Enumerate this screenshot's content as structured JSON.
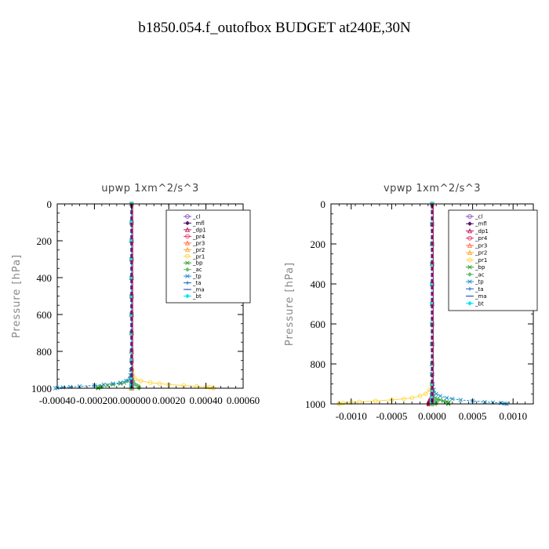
{
  "title": "b1850.054.f_outofbox  BUDGET at240E,30N",
  "legend_labels": [
    "_cl",
    "_mfl",
    "_dp1",
    "_pr4",
    "_pr3",
    "_pr2",
    "_pr1",
    "_bp",
    "_ac",
    "_tp",
    "_ta",
    "_ma",
    "_bt"
  ],
  "legend_colors": [
    "#8a4fbf",
    "#5a0f6e",
    "#c2185b",
    "#e8336d",
    "#ff7043",
    "#ffa726",
    "#ffd740",
    "#2e9e2e",
    "#66bb6a",
    "#1e90c8",
    "#1565c0",
    "#0d47a1",
    "#00e5ee"
  ],
  "chart_data": [
    {
      "type": "line",
      "title": "upwp   1xm^2/s^3",
      "xlabel": "",
      "ylabel": "Pressure [hPa]",
      "xlim": [
        -0.0004,
        0.0006
      ],
      "ylim": [
        1000,
        0
      ],
      "xticks": [
        -0.0004,
        -0.0002,
        0.0,
        0.0002,
        0.0004,
        0.0006
      ],
      "xtick_labels": [
        "-0.00040",
        "-0.00020",
        "0.000000",
        "0.00020",
        "0.00040",
        "0.00060"
      ],
      "yticks": [
        0,
        200,
        400,
        600,
        800,
        1000
      ],
      "legend_position": "top-right",
      "y": [
        0,
        100,
        200,
        300,
        400,
        500,
        600,
        700,
        800,
        850,
        900,
        930,
        950,
        960,
        970,
        975,
        980,
        985,
        990,
        993,
        995,
        998,
        1000
      ],
      "series": [
        {
          "name": "_cl",
          "values": [
            0,
            0,
            0,
            0,
            0,
            0,
            0,
            0,
            0,
            0,
            0,
            0,
            0,
            0,
            0,
            0,
            0,
            0,
            0,
            0,
            0,
            0,
            0
          ]
        },
        {
          "name": "_mfl",
          "values": [
            0,
            0,
            0,
            0,
            0,
            0,
            0,
            0,
            0,
            0,
            0,
            0,
            0,
            0,
            0,
            0,
            0,
            0,
            0,
            0,
            0,
            0,
            0
          ]
        },
        {
          "name": "_dp1",
          "values": [
            0,
            0,
            0,
            0,
            0,
            0,
            0,
            0,
            0,
            0,
            0,
            0,
            0,
            0,
            0,
            0,
            0,
            0,
            0,
            0,
            0,
            0,
            0
          ]
        },
        {
          "name": "_pr4",
          "values": [
            0,
            0,
            0,
            0,
            0,
            0,
            0,
            0,
            0,
            0,
            0,
            0,
            0,
            0,
            0,
            0,
            0,
            0,
            0,
            0,
            0,
            0,
            0
          ]
        },
        {
          "name": "_pr3",
          "values": [
            0,
            0,
            0,
            0,
            0,
            0,
            0,
            0,
            0,
            0,
            0,
            0,
            0,
            0,
            0,
            0,
            0,
            0,
            0,
            0,
            0,
            0,
            0
          ]
        },
        {
          "name": "_pr2",
          "values": [
            0,
            0,
            0,
            0,
            0,
            0,
            0,
            0,
            0,
            0,
            0,
            0,
            0,
            0,
            0,
            0,
            0,
            0,
            0,
            0,
            0,
            0,
            0
          ]
        },
        {
          "name": "_pr1",
          "values": [
            0,
            0,
            0,
            0,
            0,
            0,
            0,
            0,
            0,
            0,
            3e-06,
            8e-06,
            2e-05,
            5e-05,
            0.0001,
            0.00015,
            0.0002,
            0.00028,
            0.00035,
            0.0004,
            0.00042,
            0.00044,
            0.00044
          ]
        },
        {
          "name": "_bp",
          "values": [
            0,
            0,
            0,
            0,
            0,
            0,
            0,
            0,
            0,
            0,
            -2e-06,
            -5e-06,
            -1e-05,
            -2e-05,
            -4e-05,
            -6e-05,
            -0.0001,
            -0.00013,
            -0.00016,
            -0.00017,
            -0.00018,
            -0.00018,
            -0.00018
          ]
        },
        {
          "name": "_ac",
          "values": [
            0,
            0,
            0,
            0,
            0,
            0,
            0,
            0,
            0,
            0,
            0,
            2e-06,
            4e-06,
            8e-06,
            1e-05,
            1.5e-05,
            2e-05,
            3e-05,
            4e-05,
            4e-05,
            4e-05,
            4e-05,
            4e-05
          ]
        },
        {
          "name": "_tp",
          "values": [
            0,
            0,
            0,
            0,
            0,
            0,
            0,
            0,
            0,
            0,
            -2e-06,
            -6e-06,
            -1e-05,
            -3e-05,
            -6e-05,
            -0.0001,
            -0.00015,
            -0.0002,
            -0.00028,
            -0.00033,
            -0.00037,
            -0.0004,
            -0.00041
          ]
        },
        {
          "name": "_ta",
          "values": [
            0,
            0,
            0,
            0,
            0,
            0,
            0,
            0,
            0,
            0,
            0,
            0,
            0,
            0,
            0,
            0,
            0,
            0,
            0,
            0,
            0,
            0,
            0
          ]
        },
        {
          "name": "_ma",
          "values": [
            0,
            0,
            0,
            0,
            0,
            0,
            0,
            0,
            0,
            0,
            0,
            0,
            0,
            0,
            0,
            0,
            0,
            0,
            0,
            0,
            0,
            0,
            0
          ]
        },
        {
          "name": "_bt",
          "values": [
            0,
            0,
            0,
            0,
            0,
            0,
            0,
            0,
            0,
            0,
            0,
            0,
            0,
            0,
            0,
            0,
            0,
            0,
            0,
            0,
            0,
            0,
            0
          ]
        }
      ]
    },
    {
      "type": "line",
      "title": "vpwp   1xm^2/s^3",
      "xlabel": "",
      "ylabel": "Pressure [hPa]",
      "xlim": [
        -0.00125,
        0.00125
      ],
      "ylim": [
        1000,
        0
      ],
      "xticks": [
        -0.001,
        -0.0005,
        0.0,
        0.0005,
        0.001
      ],
      "xtick_labels": [
        "-0.0010",
        "-0.0005",
        "0.0000",
        "0.0005",
        "0.0010"
      ],
      "yticks": [
        0,
        200,
        400,
        600,
        800,
        1000
      ],
      "legend_position": "top-right",
      "y": [
        0,
        100,
        200,
        300,
        400,
        500,
        600,
        700,
        800,
        850,
        900,
        930,
        950,
        960,
        970,
        975,
        980,
        985,
        990,
        993,
        995,
        998,
        1000
      ],
      "series": [
        {
          "name": "_cl",
          "values": [
            0,
            0,
            0,
            0,
            0,
            0,
            0,
            0,
            0,
            0,
            0,
            0,
            0,
            0,
            0,
            0,
            0,
            0,
            0,
            0,
            0,
            0,
            0
          ]
        },
        {
          "name": "_mfl",
          "values": [
            0,
            0,
            0,
            0,
            0,
            0,
            0,
            0,
            0,
            0,
            0,
            0,
            0,
            0,
            0,
            0,
            0,
            0,
            0,
            0,
            0,
            0,
            0
          ]
        },
        {
          "name": "_dp1",
          "values": [
            0,
            0,
            0,
            0,
            0,
            0,
            0,
            0,
            0,
            0,
            0,
            0,
            0,
            -5e-06,
            -1e-05,
            -2e-05,
            -3e-05,
            -4e-05,
            -4e-05,
            -4e-05,
            -4e-05,
            -4e-05,
            -4e-05
          ]
        },
        {
          "name": "_pr4",
          "values": [
            0,
            0,
            0,
            0,
            0,
            0,
            0,
            0,
            0,
            0,
            0,
            0,
            0,
            0,
            0,
            0,
            0,
            0,
            0,
            0,
            0,
            0,
            0
          ]
        },
        {
          "name": "_pr3",
          "values": [
            0,
            0,
            0,
            0,
            0,
            0,
            0,
            0,
            0,
            0,
            0,
            0,
            0,
            0,
            0,
            0,
            0,
            0,
            0,
            0,
            0,
            0,
            0
          ]
        },
        {
          "name": "_pr2",
          "values": [
            0,
            0,
            0,
            0,
            0,
            0,
            0,
            0,
            0,
            0,
            0,
            0,
            0,
            0,
            0,
            0,
            0,
            0,
            0,
            0,
            0,
            0,
            0
          ]
        },
        {
          "name": "_pr1",
          "values": [
            0,
            0,
            0,
            0,
            0,
            0,
            0,
            0,
            0,
            0,
            -5e-06,
            -3e-05,
            -8e-05,
            -0.00015,
            -0.00025,
            -0.00035,
            -0.0005,
            -0.0007,
            -0.0009,
            -0.001,
            -0.0011,
            -0.00115,
            -0.00115
          ]
        },
        {
          "name": "_bp",
          "values": [
            0,
            0,
            0,
            0,
            0,
            0,
            0,
            0,
            0,
            0,
            2e-06,
            5e-06,
            1e-05,
            2e-05,
            4e-05,
            6e-05,
            0.0001,
            0.00014,
            0.00018,
            0.0002,
            0.0002,
            0.0002,
            0.0002
          ]
        },
        {
          "name": "_ac",
          "values": [
            0,
            0,
            0,
            0,
            0,
            0,
            0,
            0,
            0,
            0,
            0,
            2e-06,
            5e-06,
            1e-05,
            2e-05,
            3e-05,
            4e-05,
            5e-05,
            5e-05,
            5e-05,
            5e-05,
            5e-05,
            5e-05
          ]
        },
        {
          "name": "_tp",
          "values": [
            0,
            0,
            0,
            0,
            0,
            0,
            0,
            0,
            0,
            0,
            5e-06,
            2e-05,
            5e-05,
            0.0001,
            0.00018,
            0.00025,
            0.00035,
            0.0005,
            0.00065,
            0.00075,
            0.00085,
            0.0009,
            0.00092
          ]
        },
        {
          "name": "_ta",
          "values": [
            0,
            0,
            0,
            0,
            0,
            0,
            0,
            0,
            0,
            0,
            0,
            0,
            0,
            0,
            0,
            0,
            0,
            0,
            0,
            0,
            0,
            0,
            0
          ]
        },
        {
          "name": "_ma",
          "values": [
            0,
            0,
            0,
            0,
            0,
            0,
            0,
            0,
            0,
            0,
            0,
            0,
            0,
            0,
            0,
            0,
            0,
            0,
            0,
            0,
            0,
            0,
            0
          ]
        },
        {
          "name": "_bt",
          "values": [
            0,
            0,
            0,
            0,
            0,
            0,
            0,
            0,
            0,
            0,
            0,
            0,
            0,
            0,
            0,
            0,
            0,
            0,
            0,
            0,
            0,
            0,
            0
          ]
        }
      ]
    }
  ]
}
